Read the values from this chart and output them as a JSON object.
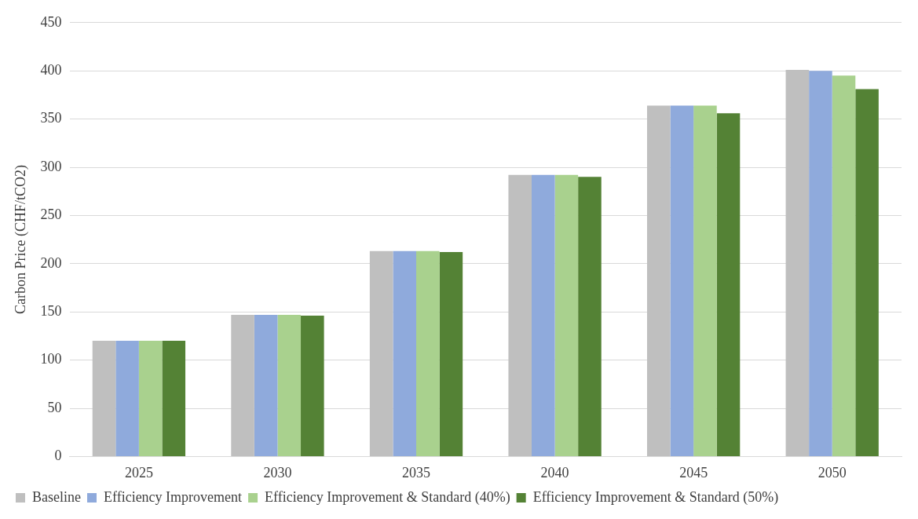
{
  "chart_data": {
    "type": "bar",
    "ylabel": "Carbon Price (CHF/tCO2)",
    "categories": [
      "2025",
      "2030",
      "2035",
      "2040",
      "2045",
      "2050"
    ],
    "series": [
      {
        "name": "Baseline",
        "color": "#bfbfbf",
        "values": [
          120,
          147,
          213,
          292,
          364,
          401
        ]
      },
      {
        "name": "Efficiency Improvement",
        "color": "#8faadc",
        "values": [
          120,
          147,
          213,
          292,
          364,
          400
        ]
      },
      {
        "name": "Efficiency Improvement & Standard (40%)",
        "color": "#a9d18e",
        "values": [
          120,
          147,
          213,
          292,
          364,
          395
        ]
      },
      {
        "name": "Efficiency Improvement & Standard (50%)",
        "color": "#548235",
        "values": [
          120,
          146,
          212,
          290,
          356,
          381
        ]
      }
    ],
    "ylim": [
      0,
      450
    ],
    "yticks": [
      0,
      50,
      100,
      150,
      200,
      250,
      300,
      350,
      400,
      450
    ],
    "grid": "y",
    "legend": "bottom"
  }
}
